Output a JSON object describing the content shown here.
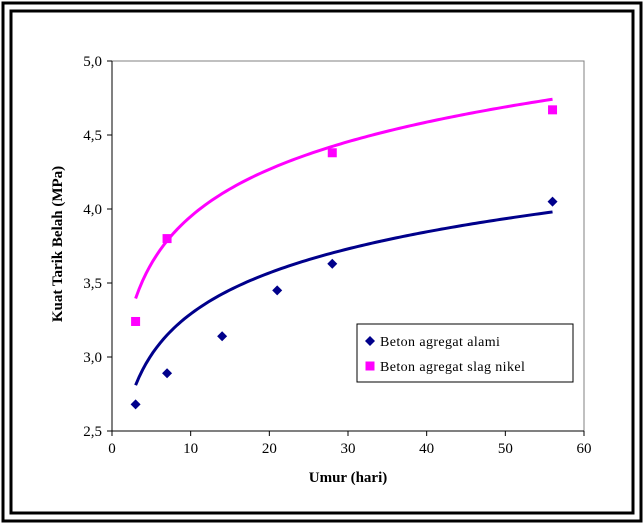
{
  "chart_data": {
    "type": "scatter",
    "xlabel": "Umur (hari)",
    "ylabel": "Kuat Tarik Belah (MPa)",
    "xlim": [
      0,
      60
    ],
    "ylim": [
      2.5,
      5.0
    ],
    "x_ticks": [
      0,
      10,
      20,
      30,
      40,
      50,
      60
    ],
    "x_tick_labels": [
      "0",
      "10",
      "20",
      "30",
      "40",
      "50",
      "60"
    ],
    "y_ticks": [
      2.5,
      3.0,
      3.5,
      4.0,
      4.5,
      5.0
    ],
    "y_tick_labels": [
      "2,5",
      "3,0",
      "3,5",
      "4,0",
      "4,5",
      "5,0"
    ],
    "grid": false,
    "legend_position": "lower-right",
    "series": [
      {
        "name": "Beton agregat alami",
        "marker": "diamond",
        "color": "#00008b",
        "x": [
          3,
          7,
          14,
          21,
          28,
          56
        ],
        "y": [
          2.68,
          2.89,
          3.14,
          3.45,
          3.63,
          4.05
        ],
        "trendline": {
          "type": "logarithmic",
          "x_range": [
            3,
            56
          ],
          "a": 2.37,
          "b": 0.4
        }
      },
      {
        "name": "Beton agregat slag nikel",
        "marker": "square",
        "color": "#ff00ff",
        "x": [
          3,
          7,
          14,
          28,
          56
        ],
        "y": [
          3.24,
          3.8,
          null,
          4.38,
          4.67
        ],
        "trendline": {
          "type": "logarithmic",
          "x_range": [
            3,
            56
          ],
          "a": 2.89,
          "b": 0.46
        }
      }
    ]
  }
}
